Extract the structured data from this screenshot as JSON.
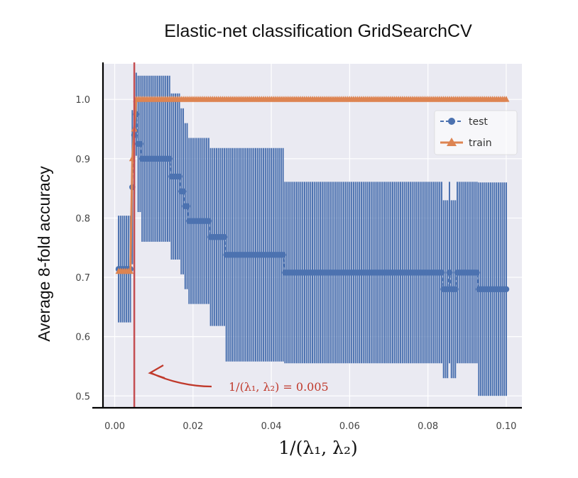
{
  "chart_data": {
    "type": "line",
    "title": "Elastic-net classification GridSearchCV",
    "xlabel": "1/(λ₁, λ₂)",
    "ylabel": "Average 8-fold accuracy",
    "xlim": [
      -0.003,
      0.104
    ],
    "ylim": [
      0.48,
      1.06
    ],
    "xticks": [
      "0.00",
      "0.02",
      "0.04",
      "0.06",
      "0.08",
      "0.10"
    ],
    "yticks": [
      "0.5",
      "0.6",
      "0.7",
      "0.8",
      "0.9",
      "1.0"
    ],
    "grid": true,
    "legend_position": "upper-right",
    "series": [
      {
        "name": "test",
        "color": "#4c72b0",
        "segments": [
          {
            "x0": 0.001,
            "x1": 0.004,
            "y": 0.714,
            "err": 0.09
          },
          {
            "x0": 0.0045,
            "x1": 0.0045,
            "y": 0.852,
            "err": 0.13
          },
          {
            "x0": 0.005,
            "x1": 0.005,
            "y": 0.94,
            "err": 0.1
          },
          {
            "x0": 0.0055,
            "x1": 0.0055,
            "y": 0.975,
            "err": 0.07
          },
          {
            "x0": 0.006,
            "x1": 0.0065,
            "y": 0.925,
            "err": 0.115
          },
          {
            "x0": 0.007,
            "x1": 0.014,
            "y": 0.9,
            "err": 0.14
          },
          {
            "x0": 0.0145,
            "x1": 0.0165,
            "y": 0.87,
            "err": 0.14
          },
          {
            "x0": 0.017,
            "x1": 0.0175,
            "y": 0.845,
            "err": 0.14
          },
          {
            "x0": 0.018,
            "x1": 0.0185,
            "y": 0.82,
            "err": 0.14
          },
          {
            "x0": 0.019,
            "x1": 0.024,
            "y": 0.795,
            "err": 0.14
          },
          {
            "x0": 0.0245,
            "x1": 0.028,
            "y": 0.768,
            "err": 0.15
          },
          {
            "x0": 0.0285,
            "x1": 0.043,
            "y": 0.738,
            "err": 0.18
          },
          {
            "x0": 0.0435,
            "x1": 0.0835,
            "y": 0.708,
            "err": 0.153
          },
          {
            "x0": 0.084,
            "x1": 0.085,
            "y": 0.68,
            "err": 0.15
          },
          {
            "x0": 0.0855,
            "x1": 0.0855,
            "y": 0.708,
            "err": 0.153
          },
          {
            "x0": 0.086,
            "x1": 0.087,
            "y": 0.68,
            "err": 0.15
          },
          {
            "x0": 0.0875,
            "x1": 0.0925,
            "y": 0.708,
            "err": 0.153
          },
          {
            "x0": 0.093,
            "x1": 0.1,
            "y": 0.68,
            "err": 0.18
          }
        ]
      },
      {
        "name": "train",
        "color": "#dd8452",
        "points": [
          {
            "x": 0.001,
            "y": 0.71
          },
          {
            "x": 0.004,
            "y": 0.71
          },
          {
            "x": 0.0045,
            "y": 0.9
          },
          {
            "x": 0.005,
            "y": 0.95
          },
          {
            "x": 0.0055,
            "y": 1.0
          },
          {
            "x": 0.1,
            "y": 1.0
          }
        ]
      }
    ],
    "vline": {
      "x": 0.005,
      "color": "#c44e52"
    },
    "annotation": {
      "text": "1/(λ₁, λ₂) = 0.005",
      "x": 0.0085,
      "y": 0.51
    }
  }
}
